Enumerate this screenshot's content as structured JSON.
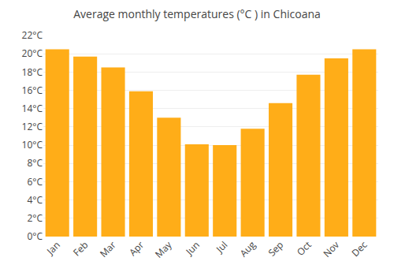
{
  "chart_data": {
    "type": "bar",
    "title": "Average monthly temperatures (°C ) in Chicoana",
    "categories": [
      "Jan",
      "Feb",
      "Mar",
      "Apr",
      "May",
      "Jun",
      "Jul",
      "Aug",
      "Sep",
      "Oct",
      "Nov",
      "Dec"
    ],
    "values": [
      20.5,
      19.7,
      18.5,
      15.9,
      13.0,
      10.1,
      10.0,
      11.8,
      14.6,
      17.7,
      19.5,
      20.5
    ],
    "color": "#FFAD18",
    "ylim": [
      0,
      22
    ],
    "yticks": [
      {
        "value": 0,
        "label": "0°C"
      },
      {
        "value": 2,
        "label": "2°C"
      },
      {
        "value": 4,
        "label": "4°C"
      },
      {
        "value": 6,
        "label": "6°C"
      },
      {
        "value": 8,
        "label": "8°C"
      },
      {
        "value": 10,
        "label": "10°C"
      },
      {
        "value": 12,
        "label": "12°C"
      },
      {
        "value": 14,
        "label": "14°C"
      },
      {
        "value": 16,
        "label": "16°C"
      },
      {
        "value": 18,
        "label": "18°C"
      },
      {
        "value": 20,
        "label": "20°C"
      },
      {
        "value": 22,
        "label": "22°C"
      }
    ],
    "grid": true
  }
}
